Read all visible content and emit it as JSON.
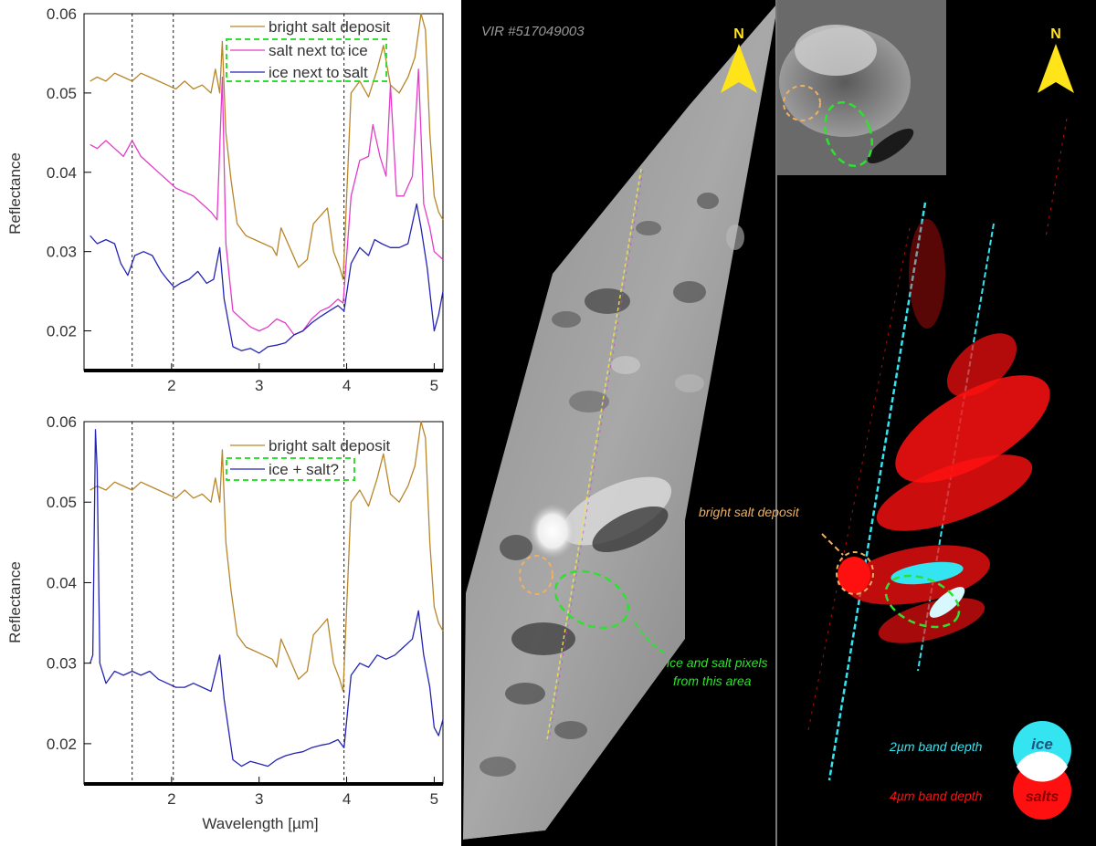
{
  "chart_data": [
    {
      "type": "line",
      "title": "",
      "xlabel": "",
      "ylabel": "Reflectance",
      "xlim": [
        1.0,
        5.1
      ],
      "ylim": [
        0.015,
        0.06
      ],
      "x_ticks": [
        2,
        3,
        4,
        5
      ],
      "y_ticks": [
        0.02,
        0.03,
        0.04,
        0.05,
        0.06
      ],
      "y_tick_labels": [
        "0.02",
        "0.03",
        "0.04",
        "0.05",
        "0.06"
      ],
      "vlines": [
        1.55,
        2.02,
        3.97
      ],
      "grid": false,
      "legend_position": "top-right",
      "series": [
        {
          "name": "bright salt deposit",
          "color": "#b8862a",
          "points": [
            [
              1.07,
              0.0515
            ],
            [
              1.15,
              0.052
            ],
            [
              1.25,
              0.0515
            ],
            [
              1.35,
              0.0525
            ],
            [
              1.45,
              0.052
            ],
            [
              1.55,
              0.0515
            ],
            [
              1.65,
              0.0525
            ],
            [
              1.75,
              0.052
            ],
            [
              1.85,
              0.0515
            ],
            [
              1.95,
              0.051
            ],
            [
              2.05,
              0.0505
            ],
            [
              2.15,
              0.0515
            ],
            [
              2.25,
              0.0505
            ],
            [
              2.35,
              0.051
            ],
            [
              2.45,
              0.05
            ],
            [
              2.5,
              0.053
            ],
            [
              2.55,
              0.05
            ],
            [
              2.58,
              0.0565
            ],
            [
              2.62,
              0.045
            ],
            [
              2.68,
              0.039
            ],
            [
              2.75,
              0.0335
            ],
            [
              2.85,
              0.032
            ],
            [
              2.95,
              0.0315
            ],
            [
              3.05,
              0.031
            ],
            [
              3.15,
              0.0305
            ],
            [
              3.2,
              0.0295
            ],
            [
              3.25,
              0.033
            ],
            [
              3.35,
              0.0305
            ],
            [
              3.45,
              0.028
            ],
            [
              3.55,
              0.029
            ],
            [
              3.62,
              0.0335
            ],
            [
              3.7,
              0.0345
            ],
            [
              3.78,
              0.0355
            ],
            [
              3.85,
              0.03
            ],
            [
              3.92,
              0.028
            ],
            [
              3.96,
              0.0265
            ],
            [
              4.05,
              0.05
            ],
            [
              4.15,
              0.0515
            ],
            [
              4.25,
              0.0495
            ],
            [
              4.35,
              0.053
            ],
            [
              4.42,
              0.056
            ],
            [
              4.5,
              0.051
            ],
            [
              4.6,
              0.05
            ],
            [
              4.7,
              0.052
            ],
            [
              4.78,
              0.0545
            ],
            [
              4.85,
              0.06
            ],
            [
              4.9,
              0.058
            ],
            [
              4.95,
              0.045
            ],
            [
              5.0,
              0.037
            ],
            [
              5.05,
              0.035
            ],
            [
              5.1,
              0.034
            ]
          ]
        },
        {
          "name": "salt next to ice",
          "color": "#e33cc8",
          "points": [
            [
              1.07,
              0.0435
            ],
            [
              1.15,
              0.043
            ],
            [
              1.25,
              0.044
            ],
            [
              1.35,
              0.043
            ],
            [
              1.45,
              0.042
            ],
            [
              1.55,
              0.044
            ],
            [
              1.65,
              0.042
            ],
            [
              1.75,
              0.041
            ],
            [
              1.85,
              0.04
            ],
            [
              1.95,
              0.039
            ],
            [
              2.05,
              0.038
            ],
            [
              2.15,
              0.0375
            ],
            [
              2.25,
              0.037
            ],
            [
              2.35,
              0.036
            ],
            [
              2.45,
              0.035
            ],
            [
              2.52,
              0.034
            ],
            [
              2.58,
              0.052
            ],
            [
              2.62,
              0.031
            ],
            [
              2.7,
              0.0225
            ],
            [
              2.8,
              0.0215
            ],
            [
              2.9,
              0.0205
            ],
            [
              3.0,
              0.02
            ],
            [
              3.1,
              0.0205
            ],
            [
              3.2,
              0.0215
            ],
            [
              3.3,
              0.021
            ],
            [
              3.4,
              0.0195
            ],
            [
              3.5,
              0.02
            ],
            [
              3.6,
              0.0215
            ],
            [
              3.7,
              0.0225
            ],
            [
              3.8,
              0.023
            ],
            [
              3.9,
              0.024
            ],
            [
              3.96,
              0.0235
            ],
            [
              4.05,
              0.037
            ],
            [
              4.15,
              0.0415
            ],
            [
              4.25,
              0.042
            ],
            [
              4.3,
              0.046
            ],
            [
              4.38,
              0.042
            ],
            [
              4.45,
              0.0395
            ],
            [
              4.5,
              0.051
            ],
            [
              4.57,
              0.037
            ],
            [
              4.65,
              0.037
            ],
            [
              4.75,
              0.0395
            ],
            [
              4.82,
              0.053
            ],
            [
              4.88,
              0.036
            ],
            [
              4.95,
              0.033
            ],
            [
              5.0,
              0.03
            ],
            [
              5.1,
              0.029
            ]
          ]
        },
        {
          "name": "ice next to salt",
          "color": "#2424b4",
          "points": [
            [
              1.07,
              0.032
            ],
            [
              1.15,
              0.031
            ],
            [
              1.25,
              0.0315
            ],
            [
              1.35,
              0.031
            ],
            [
              1.42,
              0.0285
            ],
            [
              1.5,
              0.027
            ],
            [
              1.58,
              0.0295
            ],
            [
              1.68,
              0.03
            ],
            [
              1.78,
              0.0295
            ],
            [
              1.88,
              0.0275
            ],
            [
              1.95,
              0.0265
            ],
            [
              2.03,
              0.0255
            ],
            [
              2.1,
              0.026
            ],
            [
              2.2,
              0.0265
            ],
            [
              2.3,
              0.0275
            ],
            [
              2.4,
              0.026
            ],
            [
              2.48,
              0.0265
            ],
            [
              2.55,
              0.0305
            ],
            [
              2.6,
              0.024
            ],
            [
              2.7,
              0.018
            ],
            [
              2.8,
              0.0175
            ],
            [
              2.9,
              0.0178
            ],
            [
              3.0,
              0.0172
            ],
            [
              3.1,
              0.018
            ],
            [
              3.2,
              0.0182
            ],
            [
              3.3,
              0.0185
            ],
            [
              3.4,
              0.0195
            ],
            [
              3.5,
              0.02
            ],
            [
              3.6,
              0.021
            ],
            [
              3.7,
              0.0218
            ],
            [
              3.8,
              0.0225
            ],
            [
              3.9,
              0.0232
            ],
            [
              3.97,
              0.0225
            ],
            [
              4.05,
              0.0285
            ],
            [
              4.15,
              0.0305
            ],
            [
              4.25,
              0.0295
            ],
            [
              4.32,
              0.0315
            ],
            [
              4.4,
              0.031
            ],
            [
              4.5,
              0.0305
            ],
            [
              4.6,
              0.0305
            ],
            [
              4.7,
              0.031
            ],
            [
              4.8,
              0.036
            ],
            [
              4.85,
              0.033
            ],
            [
              4.92,
              0.028
            ],
            [
              5.0,
              0.02
            ],
            [
              5.05,
              0.022
            ],
            [
              5.1,
              0.025
            ]
          ]
        }
      ],
      "legend": [
        "bright salt deposit",
        "salt next to ice",
        "ice next to salt"
      ]
    },
    {
      "type": "line",
      "title": "",
      "xlabel": "Wavelength [µm]",
      "ylabel": "Reflectance",
      "xlim": [
        1.0,
        5.1
      ],
      "ylim": [
        0.015,
        0.06
      ],
      "x_ticks": [
        2,
        3,
        4,
        5
      ],
      "y_ticks": [
        0.02,
        0.03,
        0.04,
        0.05,
        0.06
      ],
      "y_tick_labels": [
        "0.02",
        "0.03",
        "0.04",
        "0.05",
        "0.06"
      ],
      "vlines": [
        1.55,
        2.02,
        3.97
      ],
      "grid": false,
      "legend_position": "top-right",
      "series": [
        {
          "name": "bright salt deposit",
          "color": "#b8862a",
          "points": [
            [
              1.07,
              0.0515
            ],
            [
              1.15,
              0.052
            ],
            [
              1.25,
              0.0515
            ],
            [
              1.35,
              0.0525
            ],
            [
              1.45,
              0.052
            ],
            [
              1.55,
              0.0515
            ],
            [
              1.65,
              0.0525
            ],
            [
              1.75,
              0.052
            ],
            [
              1.85,
              0.0515
            ],
            [
              1.95,
              0.051
            ],
            [
              2.05,
              0.0505
            ],
            [
              2.15,
              0.0515
            ],
            [
              2.25,
              0.0505
            ],
            [
              2.35,
              0.051
            ],
            [
              2.45,
              0.05
            ],
            [
              2.5,
              0.053
            ],
            [
              2.55,
              0.05
            ],
            [
              2.58,
              0.0565
            ],
            [
              2.62,
              0.045
            ],
            [
              2.68,
              0.039
            ],
            [
              2.75,
              0.0335
            ],
            [
              2.85,
              0.032
            ],
            [
              2.95,
              0.0315
            ],
            [
              3.05,
              0.031
            ],
            [
              3.15,
              0.0305
            ],
            [
              3.2,
              0.0295
            ],
            [
              3.25,
              0.033
            ],
            [
              3.35,
              0.0305
            ],
            [
              3.45,
              0.028
            ],
            [
              3.55,
              0.029
            ],
            [
              3.62,
              0.0335
            ],
            [
              3.7,
              0.0345
            ],
            [
              3.78,
              0.0355
            ],
            [
              3.85,
              0.03
            ],
            [
              3.92,
              0.028
            ],
            [
              3.96,
              0.0265
            ],
            [
              4.05,
              0.05
            ],
            [
              4.15,
              0.0515
            ],
            [
              4.25,
              0.0495
            ],
            [
              4.35,
              0.053
            ],
            [
              4.42,
              0.056
            ],
            [
              4.5,
              0.051
            ],
            [
              4.6,
              0.05
            ],
            [
              4.7,
              0.052
            ],
            [
              4.78,
              0.0545
            ],
            [
              4.85,
              0.06
            ],
            [
              4.9,
              0.058
            ],
            [
              4.95,
              0.045
            ],
            [
              5.0,
              0.037
            ],
            [
              5.05,
              0.035
            ],
            [
              5.1,
              0.034
            ]
          ]
        },
        {
          "name": "ice + salt?",
          "color": "#2424b4",
          "points": [
            [
              1.07,
              0.03
            ],
            [
              1.1,
              0.031
            ],
            [
              1.13,
              0.059
            ],
            [
              1.15,
              0.054
            ],
            [
              1.18,
              0.03
            ],
            [
              1.25,
              0.0275
            ],
            [
              1.35,
              0.029
            ],
            [
              1.45,
              0.0285
            ],
            [
              1.55,
              0.029
            ],
            [
              1.65,
              0.0285
            ],
            [
              1.75,
              0.029
            ],
            [
              1.85,
              0.028
            ],
            [
              1.95,
              0.0275
            ],
            [
              2.05,
              0.027
            ],
            [
              2.15,
              0.027
            ],
            [
              2.25,
              0.0275
            ],
            [
              2.35,
              0.027
            ],
            [
              2.45,
              0.0265
            ],
            [
              2.55,
              0.031
            ],
            [
              2.6,
              0.0255
            ],
            [
              2.7,
              0.018
            ],
            [
              2.8,
              0.0172
            ],
            [
              2.9,
              0.0178
            ],
            [
              3.0,
              0.0175
            ],
            [
              3.1,
              0.0172
            ],
            [
              3.2,
              0.018
            ],
            [
              3.3,
              0.0185
            ],
            [
              3.4,
              0.0188
            ],
            [
              3.5,
              0.019
            ],
            [
              3.6,
              0.0195
            ],
            [
              3.7,
              0.0198
            ],
            [
              3.8,
              0.02
            ],
            [
              3.9,
              0.0205
            ],
            [
              3.97,
              0.0195
            ],
            [
              4.05,
              0.0285
            ],
            [
              4.15,
              0.03
            ],
            [
              4.25,
              0.0295
            ],
            [
              4.35,
              0.031
            ],
            [
              4.45,
              0.0305
            ],
            [
              4.55,
              0.031
            ],
            [
              4.65,
              0.032
            ],
            [
              4.75,
              0.033
            ],
            [
              4.82,
              0.0365
            ],
            [
              4.88,
              0.031
            ],
            [
              4.95,
              0.027
            ],
            [
              5.0,
              0.022
            ],
            [
              5.05,
              0.021
            ],
            [
              5.1,
              0.023
            ]
          ]
        }
      ],
      "legend": [
        "bright salt deposit",
        "ice + salt?"
      ]
    }
  ],
  "maps": {
    "scene_label": "VIR #517049003",
    "north_label": "N",
    "bright_salt_label": "bright salt deposit",
    "ice_salt_label_line1": "ice and salt pixels",
    "ice_salt_label_line2": "from this area",
    "band2_label": "2µm band depth",
    "band4_label": "4µm band depth",
    "ice_label": "ice",
    "salts_label": "salts",
    "colors": {
      "ice": "#34e4f0",
      "salts": "#ff1010",
      "salt_circle": "#f0b060",
      "ice_salt_ellipse": "#30e030",
      "north_arrow": "#ffe41a"
    }
  }
}
